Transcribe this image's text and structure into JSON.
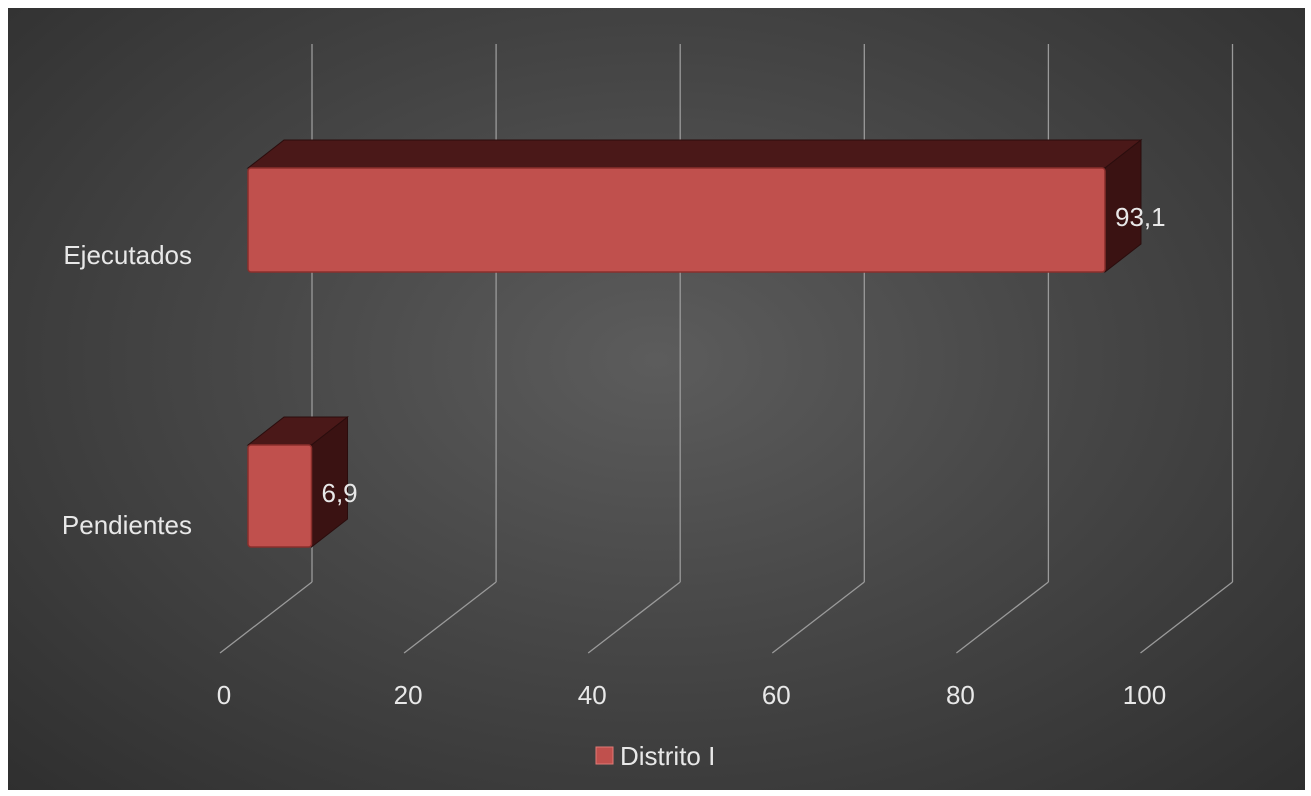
{
  "chart_data": {
    "type": "bar",
    "orientation": "horizontal",
    "style": "3d",
    "categories": [
      "Ejecutados",
      "Pendientes"
    ],
    "series": [
      {
        "name": "Distrito I",
        "values": [
          93.1,
          6.9
        ],
        "data_labels": [
          "93,1",
          "6,9"
        ]
      }
    ],
    "xlim": [
      0,
      100
    ],
    "x_ticks": [
      "0",
      "20",
      "40",
      "60",
      "80",
      "100"
    ],
    "grid": true,
    "legend_position": "bottom",
    "colors": {
      "bar_front": "#c0504d",
      "bar_top": "#4a1818",
      "bar_side": "#3a1212",
      "background": "#4d4d4d",
      "gridline": "#9a9a9a",
      "text": "#e8e8e8"
    }
  }
}
